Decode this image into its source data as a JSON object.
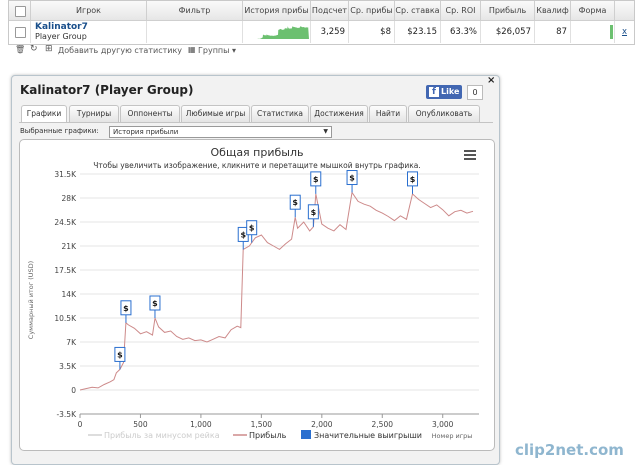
{
  "table": {
    "headers": [
      "Игрок",
      "Фильтр",
      "История прибы",
      "Подсчет",
      "Ср. прибы",
      "Ср. ставка",
      "Ср. ROI",
      "Прибыль",
      "Квалиф",
      "Форма"
    ],
    "row": {
      "player": "Kalinator7",
      "group": "Player Group",
      "count": "3,259",
      "avg_profit": "$8",
      "avg_stake": "$23.15",
      "avg_roi": "63.3%",
      "profit": "$26,057",
      "qualif": "87",
      "remove": "x"
    }
  },
  "toolbar": {
    "add_stats": "Добавить другую статистику",
    "groups": "Группы"
  },
  "dialog": {
    "title": "Kalinator7 (Player Group)",
    "like_label": "Like",
    "like_count": "0",
    "close": "×",
    "tabs": [
      "Графики",
      "Турниры",
      "Оппоненты",
      "Любимые игры",
      "Статистика",
      "Достижения",
      "Найти",
      "Опубликовать"
    ],
    "select_label": "Выбранные графики:",
    "select_value": "История прибыли"
  },
  "colors": {
    "profit_line": "#cd8a8a",
    "big_win": "#2a6fcf",
    "sparkline": "#4caf50"
  },
  "watermark": "clip2net.com",
  "chart_data": {
    "type": "line",
    "title": "Общая прибыль",
    "subtitle": "Чтобы увеличить изображение, кликните и перетащите мышкой внутрь графика.",
    "ylabel": "Суммарный итог (USD)",
    "xlabel": "Номер игры",
    "ylim": [
      -3500,
      31500
    ],
    "xlim": [
      0,
      3300
    ],
    "y_ticks": [
      "-3.5K",
      "0",
      "3.5K",
      "7K",
      "10.5K",
      "14K",
      "17.5K",
      "21K",
      "24.5K",
      "28K",
      "31.5K"
    ],
    "x_ticks": [
      "0",
      "500",
      "1,000",
      "1,500",
      "2,000",
      "2,500",
      "3,000"
    ],
    "legend": [
      "Прибыль за минусом рейка",
      "Прибыль",
      "Значительные выигрыши"
    ],
    "series": [
      {
        "name": "Прибыль",
        "x": [
          0,
          50,
          100,
          150,
          200,
          250,
          280,
          300,
          330,
          360,
          380,
          400,
          450,
          500,
          550,
          600,
          620,
          650,
          700,
          750,
          800,
          850,
          900,
          950,
          1000,
          1050,
          1100,
          1150,
          1200,
          1250,
          1300,
          1330,
          1350,
          1400,
          1450,
          1500,
          1550,
          1600,
          1650,
          1700,
          1750,
          1780,
          1800,
          1850,
          1900,
          1930,
          1950,
          2000,
          2050,
          2100,
          2150,
          2200,
          2250,
          2300,
          2350,
          2400,
          2450,
          2500,
          2550,
          2600,
          2650,
          2700,
          2750,
          2800,
          2850,
          2900,
          2950,
          3000,
          3050,
          3100,
          3150,
          3200,
          3250
        ],
        "y": [
          0,
          200,
          400,
          300,
          800,
          1200,
          1500,
          2500,
          3000,
          4000,
          9800,
          9500,
          9000,
          8200,
          8500,
          8000,
          10500,
          9200,
          8400,
          8600,
          7800,
          7400,
          7600,
          7200,
          7300,
          7000,
          7400,
          7800,
          7600,
          8800,
          9300,
          9100,
          20500,
          21000,
          22200,
          22600,
          21500,
          21000,
          20500,
          21300,
          22000,
          25200,
          23600,
          24500,
          23200,
          23800,
          28600,
          24200,
          23600,
          23200,
          24100,
          23400,
          28800,
          27500,
          27100,
          26800,
          26200,
          25800,
          25300,
          24700,
          25400,
          24900,
          28600,
          27800,
          27200,
          26600,
          27000,
          26300,
          25400,
          26000,
          26200,
          25800,
          26057
        ]
      }
    ],
    "big_wins_x": [
      330,
      380,
      620,
      1350,
      1420,
      1780,
      1930,
      1950,
      2250,
      2750
    ]
  }
}
